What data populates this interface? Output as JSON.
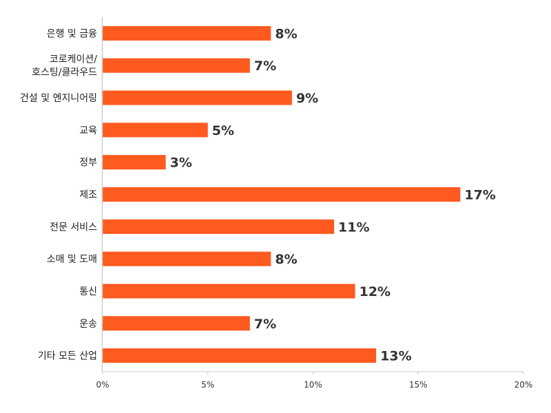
{
  "chart_data": {
    "type": "bar",
    "orientation": "horizontal",
    "title": "",
    "xlabel": "",
    "ylabel": "",
    "categories": [
      [
        "은행 및 금융"
      ],
      [
        "코로케이션/",
        "호스팅/클라우드"
      ],
      [
        "건설 및 엔지니어링"
      ],
      [
        "교육"
      ],
      [
        "정부"
      ],
      [
        "제조"
      ],
      [
        "전문 서비스"
      ],
      [
        "소매 및 도매"
      ],
      [
        "통신"
      ],
      [
        "운송"
      ],
      [
        "기타 모든 산업"
      ]
    ],
    "values": [
      8,
      7,
      9,
      5,
      3,
      17,
      11,
      8,
      12,
      7,
      13
    ],
    "value_labels": [
      "8%",
      "7%",
      "9%",
      "5%",
      "3%",
      "17%",
      "11%",
      "8%",
      "12%",
      "7%",
      "13%"
    ],
    "xlim": [
      0,
      20
    ],
    "xticks": [
      0,
      5,
      10,
      15,
      20
    ],
    "xtick_labels": [
      "0%",
      "5%",
      "10%",
      "15%",
      "20%"
    ],
    "grid": false,
    "bar_color": "#FF5A1F"
  }
}
